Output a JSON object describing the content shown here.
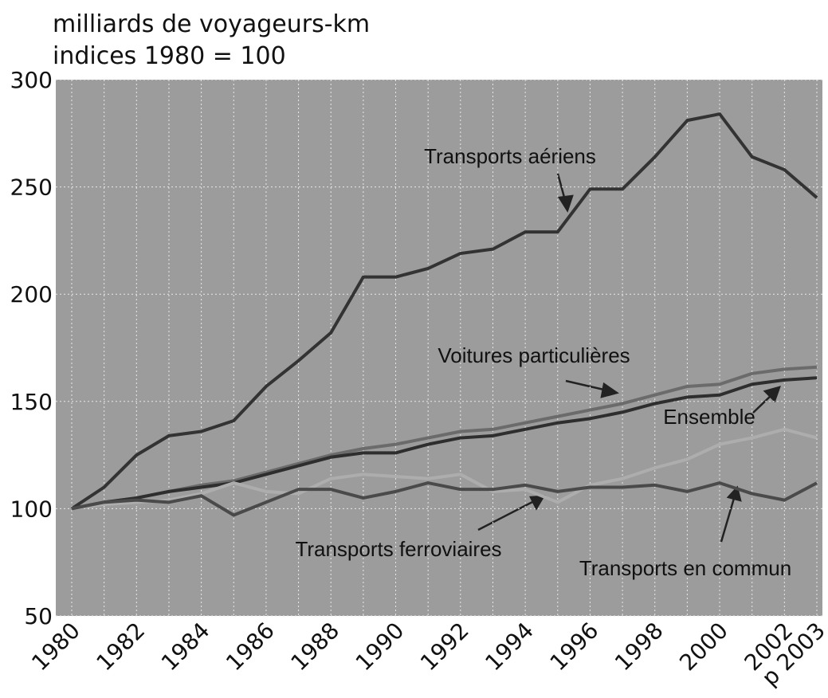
{
  "chart_data": {
    "type": "line",
    "title": "milliards de voyageurs-km",
    "subtitle": "indices 1980 = 100",
    "categories": [
      "1980",
      null,
      "1982",
      null,
      "1984",
      null,
      "1986",
      null,
      "1988",
      null,
      "1990",
      null,
      "1992",
      null,
      "1994",
      null,
      "1996",
      null,
      "1998",
      null,
      "2000",
      null,
      "2002",
      "p 2003"
    ],
    "ylim": [
      50,
      300
    ],
    "yticks": [
      50,
      100,
      150,
      200,
      250,
      300
    ],
    "grid": true,
    "series": [
      {
        "name": "Transports aériens",
        "color": "#333333",
        "values": [
          100,
          110,
          125,
          134,
          136,
          141,
          157,
          169,
          182,
          208,
          208,
          212,
          219,
          221,
          229,
          229,
          249,
          249,
          264,
          281,
          284,
          264,
          258,
          245
        ]
      },
      {
        "name": "Voitures particulières",
        "color": "#6b6b6b",
        "values": [
          100,
          103,
          105,
          108,
          111,
          113,
          117,
          121,
          125,
          128,
          130,
          133,
          136,
          137,
          140,
          143,
          146,
          149,
          153,
          157,
          158,
          163,
          165,
          166
        ]
      },
      {
        "name": "Ensemble",
        "color": "#2e2e2e",
        "values": [
          100,
          103,
          105,
          108,
          110,
          112,
          116,
          120,
          124,
          126,
          126,
          130,
          133,
          134,
          137,
          140,
          142,
          145,
          149,
          152,
          153,
          158,
          160,
          161
        ]
      },
      {
        "name": "Transports  ferroviaires",
        "color": "#adadad",
        "values": [
          100,
          102,
          103,
          104,
          107,
          112,
          108,
          107,
          114,
          116,
          115,
          114,
          116,
          108,
          109,
          103,
          111,
          114,
          119,
          123,
          130,
          133,
          137,
          133
        ]
      },
      {
        "name": "Transports en commun",
        "color": "#4a4a4a",
        "values": [
          100,
          103,
          104,
          103,
          106,
          97,
          103,
          109,
          109,
          105,
          108,
          112,
          109,
          109,
          111,
          108,
          110,
          110,
          111,
          108,
          112,
          107,
          104,
          112
        ]
      }
    ]
  }
}
